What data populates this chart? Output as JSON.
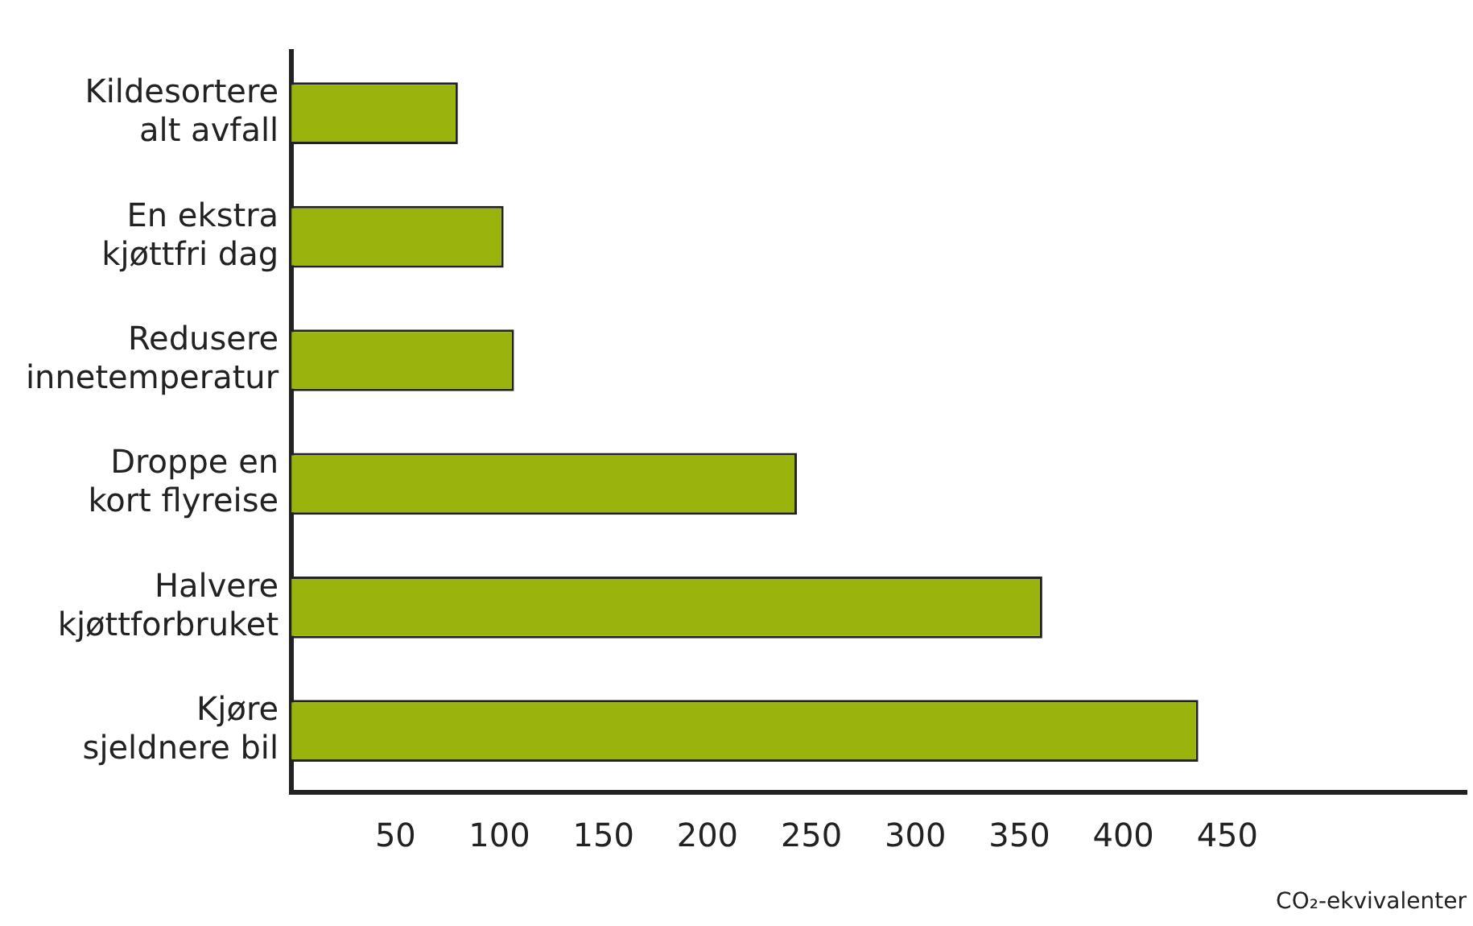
{
  "chart_data": {
    "type": "bar",
    "orientation": "horizontal",
    "xlabel": "CO₂-ekvivalenter",
    "categories": [
      "Kildesortere alt avfall",
      "En ekstra kjøttfri dag",
      "Redusere innetemperatur",
      "Droppe en kort flyreise",
      "Halvere kjøttforbruket",
      "Kjøre sjeldnere bil"
    ],
    "values": [
      80,
      102,
      107,
      243,
      361,
      436
    ],
    "color": "#9bb40d",
    "xlim": [
      0,
      565
    ],
    "xticks": [
      50,
      100,
      150,
      200,
      250,
      300,
      350,
      400,
      450
    ],
    "grid": false,
    "legend": false
  }
}
